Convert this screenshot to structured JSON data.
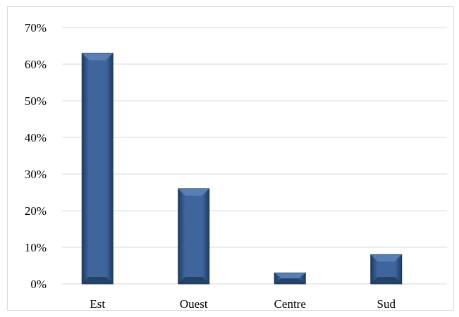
{
  "chart_data": {
    "type": "bar",
    "title": "",
    "xlabel": "",
    "ylabel": "",
    "categories": [
      "Est",
      "Ouest",
      "Centre",
      "Sud"
    ],
    "values": [
      63,
      26,
      3,
      8
    ],
    "unit": "%",
    "ylim": [
      0,
      70
    ],
    "y_ticks": [
      "0%",
      "10%",
      "20%",
      "30%",
      "40%",
      "50%",
      "60%",
      "70%"
    ],
    "grid": true,
    "legend": "none",
    "colors": {
      "bar": "#3c6193",
      "bar_edge": "#203a5c",
      "grid": "#d9d9d9"
    }
  }
}
